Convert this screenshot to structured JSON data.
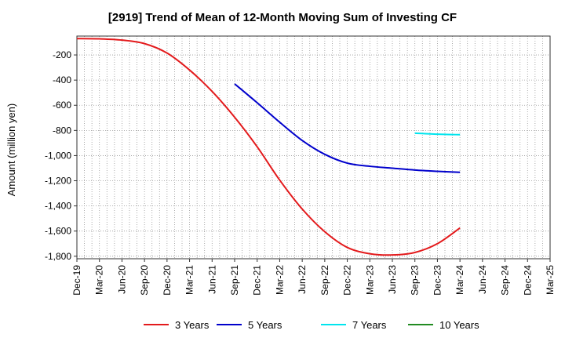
{
  "chart_data": {
    "type": "line",
    "title": "[2919]  Trend of Mean of 12-Month Moving Sum of Investing CF",
    "xlabel": "",
    "ylabel": "Amount (million yen)",
    "x_ticks": [
      "Dec-19",
      "Mar-20",
      "Jun-20",
      "Sep-20",
      "Dec-20",
      "Mar-21",
      "Jun-21",
      "Sep-21",
      "Dec-21",
      "Mar-22",
      "Jun-22",
      "Sep-22",
      "Dec-22",
      "Mar-23",
      "Jun-23",
      "Sep-23",
      "Dec-23",
      "Mar-24",
      "Jun-24",
      "Sep-24",
      "Dec-24",
      "Mar-25"
    ],
    "y_ticks": [
      -200,
      -400,
      -600,
      -800,
      -1000,
      -1200,
      -1400,
      -1600,
      -1800
    ],
    "y_tick_labels": [
      "-200",
      "-400",
      "-600",
      "-800",
      "-1,000",
      "-1,200",
      "-1,400",
      "-1,600",
      "-1,800"
    ],
    "ylim": [
      -1820,
      -50
    ],
    "grid": true,
    "legend_position": "bottom",
    "series": [
      {
        "name": "3 Years",
        "color": "#e31a1c",
        "x": [
          "Dec-19",
          "Mar-20",
          "Jun-20",
          "Sep-20",
          "Dec-20",
          "Mar-21",
          "Jun-21",
          "Sep-21",
          "Dec-21",
          "Mar-22",
          "Jun-22",
          "Sep-22",
          "Dec-22",
          "Mar-23",
          "Jun-23",
          "Sep-23",
          "Dec-23",
          "Mar-24"
        ],
        "values": [
          -70,
          -72,
          -82,
          -110,
          -185,
          -320,
          -490,
          -695,
          -930,
          -1195,
          -1425,
          -1605,
          -1730,
          -1780,
          -1790,
          -1770,
          -1700,
          -1575
        ]
      },
      {
        "name": "5 Years",
        "color": "#0000cc",
        "x": [
          "Sep-21",
          "Dec-21",
          "Mar-22",
          "Jun-22",
          "Sep-22",
          "Dec-22",
          "Mar-23",
          "Jun-23",
          "Sep-23",
          "Dec-23",
          "Mar-24"
        ],
        "values": [
          -430,
          -580,
          -735,
          -880,
          -990,
          -1060,
          -1085,
          -1100,
          -1115,
          -1125,
          -1133
        ]
      },
      {
        "name": "7 Years",
        "color": "#00e5ee",
        "x": [
          "Sep-23",
          "Dec-23",
          "Mar-24"
        ],
        "values": [
          -822,
          -830,
          -834
        ]
      },
      {
        "name": "10 Years",
        "color": "#228b22",
        "x": [],
        "values": []
      }
    ]
  }
}
